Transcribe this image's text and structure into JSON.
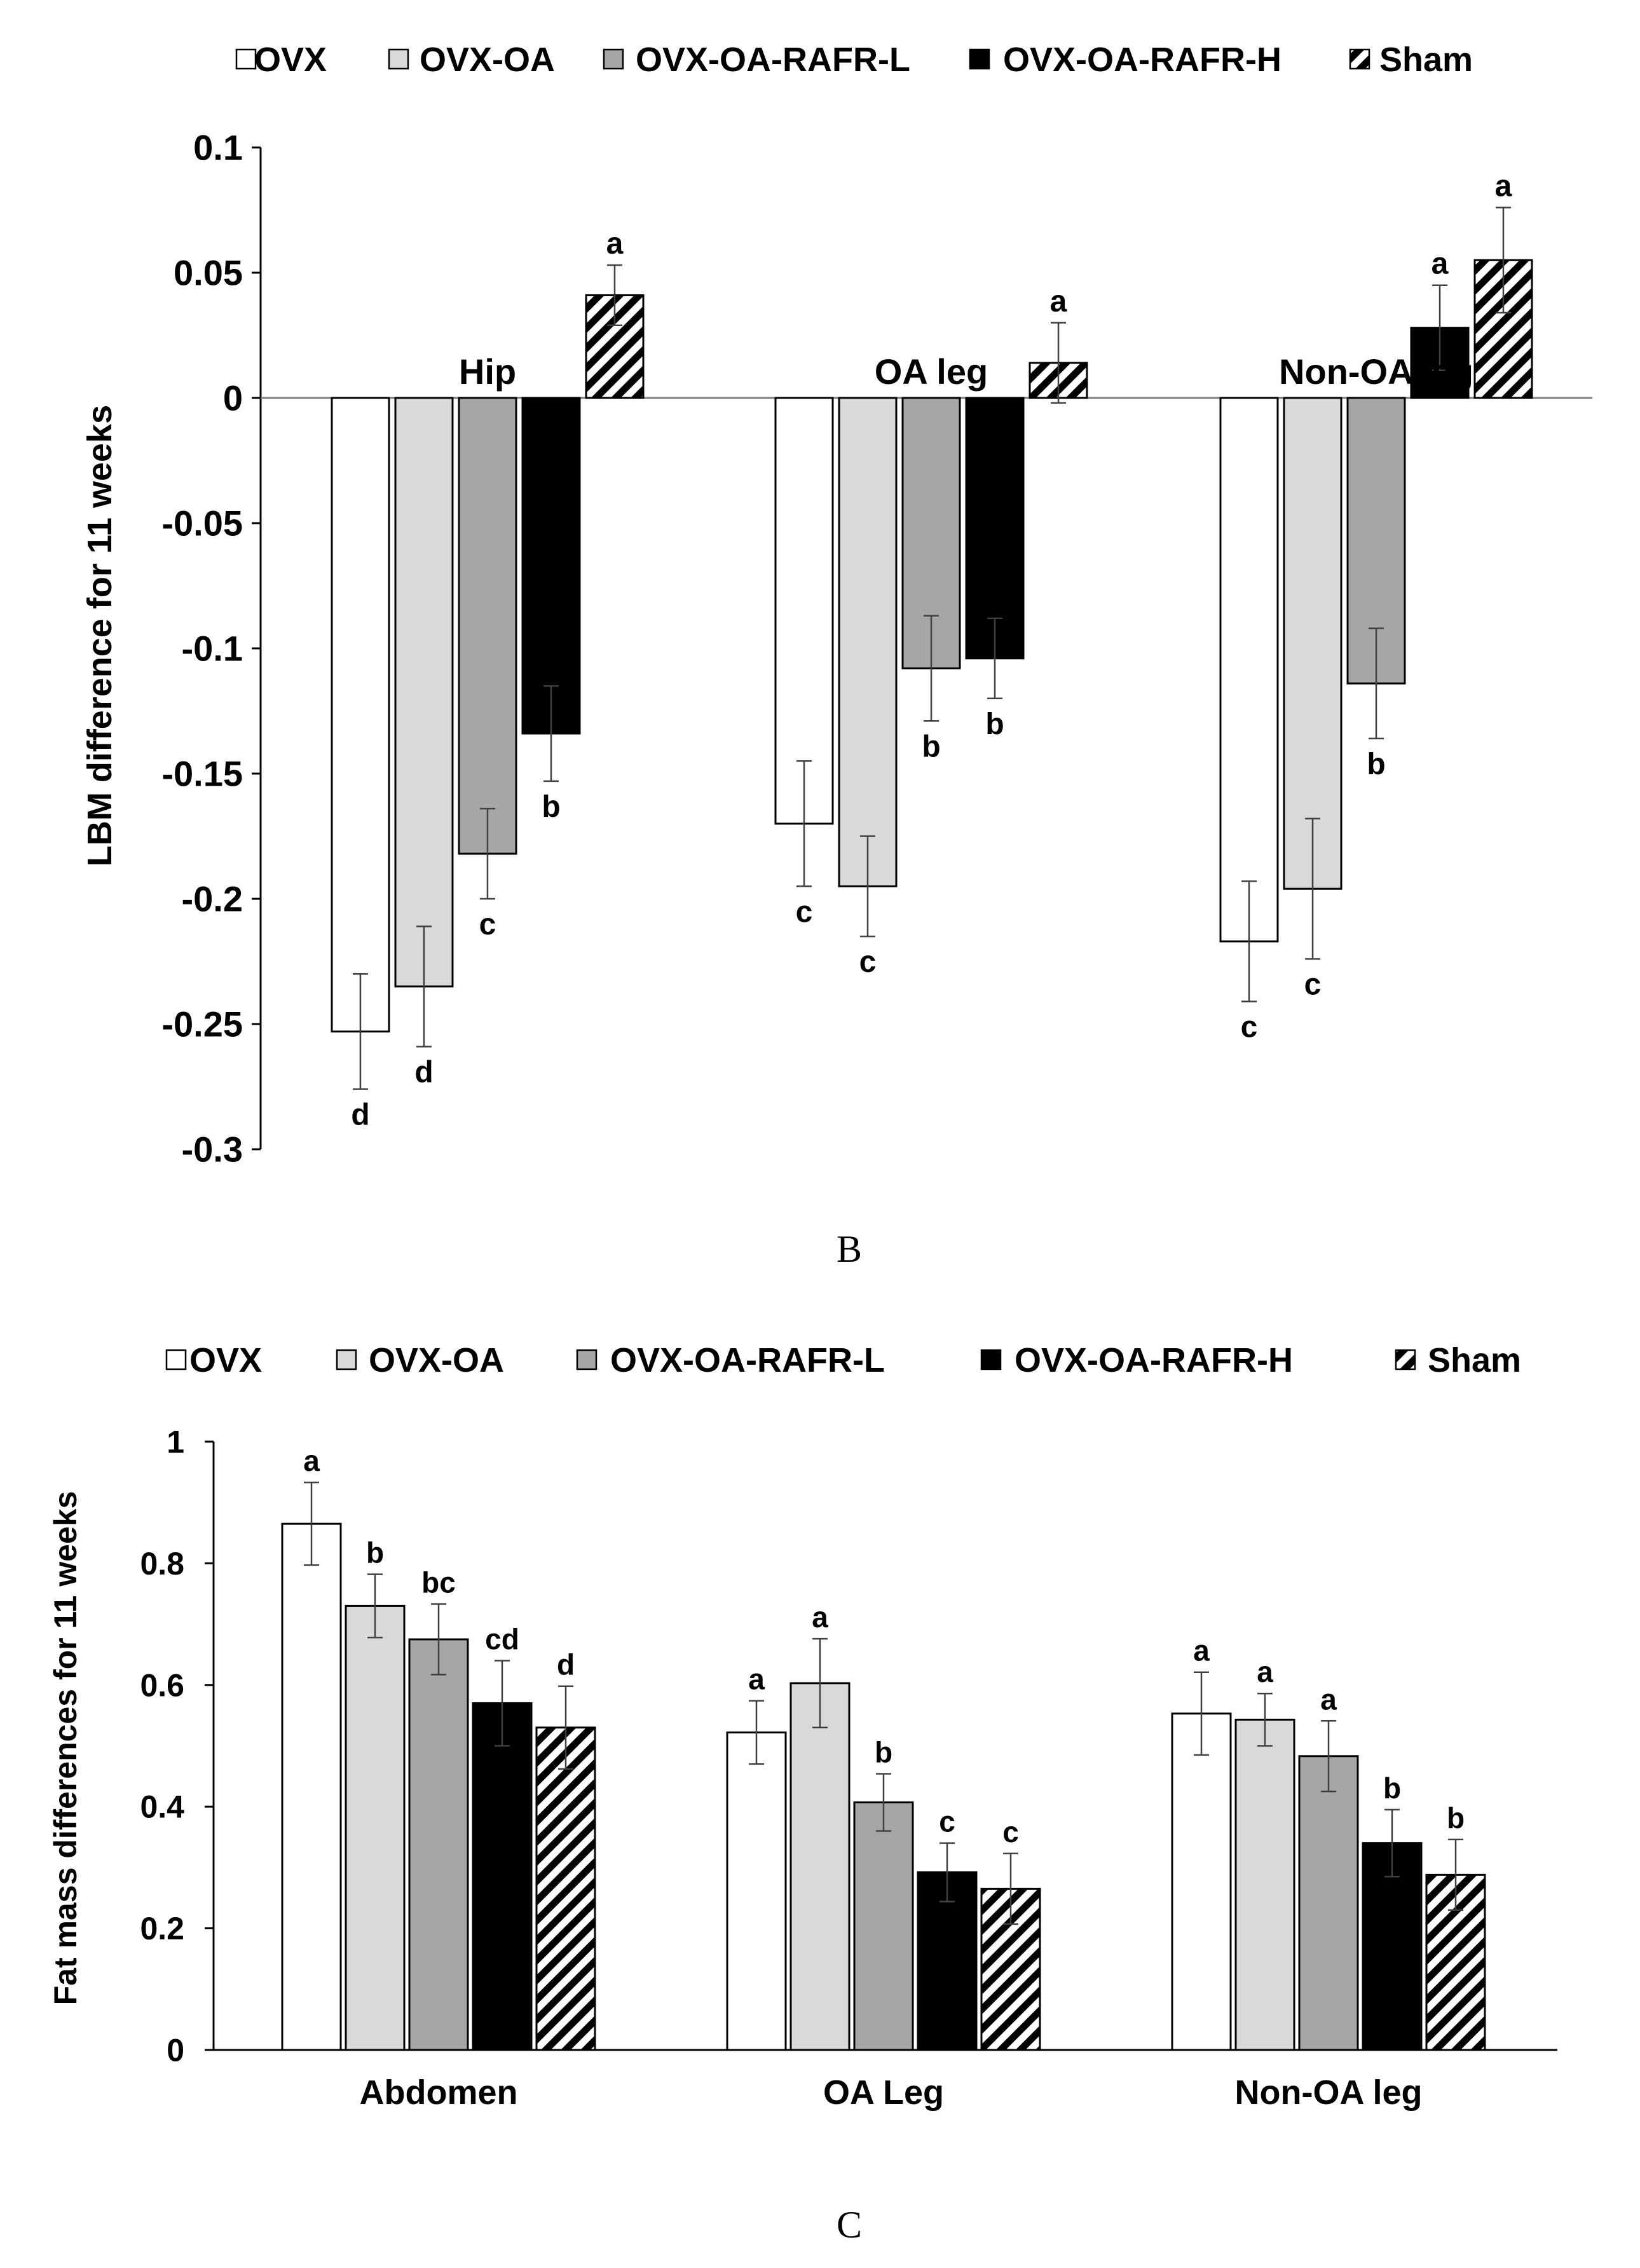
{
  "chart_data": [
    {
      "type": "bar",
      "panel_label": "B",
      "title": "",
      "xlabel": "",
      "ylabel": "LBM difference for 11 weeks",
      "ylim": [
        -0.3,
        0.1
      ],
      "yticks": [
        "0.1",
        "0.05",
        "0",
        "-0.05",
        "-0.1",
        "-0.15",
        "-0.2",
        "-0.25",
        "-0.3"
      ],
      "ytick_values": [
        0.1,
        0.05,
        0,
        -0.05,
        -0.1,
        -0.15,
        -0.2,
        -0.25,
        -0.3
      ],
      "categories": [
        "Hip",
        "OA leg",
        "Non-OA leg"
      ],
      "legend_position": "top",
      "series": [
        {
          "name": "OVX",
          "style": "white",
          "values": [
            -0.253,
            -0.17,
            -0.217
          ],
          "errors": [
            0.023,
            0.025,
            0.024
          ],
          "letters": [
            "d",
            "c",
            "c"
          ]
        },
        {
          "name": "OVX-OA",
          "style": "lightgray",
          "values": [
            -0.235,
            -0.195,
            -0.196
          ],
          "errors": [
            0.024,
            0.02,
            0.028
          ],
          "letters": [
            "d",
            "c",
            "c"
          ]
        },
        {
          "name": "OVX-OA-RAFR-L",
          "style": "gray",
          "values": [
            -0.182,
            -0.108,
            -0.114
          ],
          "errors": [
            0.018,
            0.021,
            0.022
          ],
          "letters": [
            "c",
            "b",
            "b"
          ]
        },
        {
          "name": "OVX-OA-RAFR-H",
          "style": "black",
          "values": [
            -0.134,
            -0.104,
            0.028
          ],
          "errors": [
            0.019,
            0.016,
            0.017
          ],
          "letters": [
            "b",
            "b",
            "a"
          ]
        },
        {
          "name": "Sham",
          "style": "hatch",
          "values": [
            0.041,
            0.014,
            0.055
          ],
          "errors": [
            0.012,
            0.016,
            0.021
          ],
          "letters": [
            "a",
            "a",
            "a"
          ]
        }
      ]
    },
    {
      "type": "bar",
      "panel_label": "C",
      "title": "",
      "xlabel": "",
      "ylabel": "Fat mass differences for 11 weeks",
      "ylim": [
        0,
        1
      ],
      "yticks": [
        "1",
        "0.8",
        "0.6",
        "0.4",
        "0.2",
        "0"
      ],
      "ytick_values": [
        1,
        0.8,
        0.6,
        0.4,
        0.2,
        0
      ],
      "categories": [
        "Abdomen",
        "OA Leg",
        "Non-OA leg"
      ],
      "legend_position": "top",
      "series": [
        {
          "name": "OVX",
          "style": "white",
          "values": [
            0.865,
            0.522,
            0.553
          ],
          "errors": [
            0.068,
            0.052,
            0.068
          ],
          "letters": [
            "a",
            "a",
            "a"
          ]
        },
        {
          "name": "OVX-OA",
          "style": "lightgray",
          "values": [
            0.73,
            0.603,
            0.543
          ],
          "errors": [
            0.052,
            0.073,
            0.043
          ],
          "letters": [
            "b",
            "a",
            "a"
          ]
        },
        {
          "name": "OVX-OA-RAFR-L",
          "style": "gray",
          "values": [
            0.675,
            0.407,
            0.483
          ],
          "errors": [
            0.058,
            0.047,
            0.058
          ],
          "letters": [
            "bc",
            "b",
            "a"
          ]
        },
        {
          "name": "OVX-OA-RAFR-H",
          "style": "black",
          "values": [
            0.57,
            0.292,
            0.34
          ],
          "errors": [
            0.07,
            0.048,
            0.055
          ],
          "letters": [
            "cd",
            "c",
            "b"
          ]
        },
        {
          "name": "Sham",
          "style": "hatch",
          "values": [
            0.53,
            0.265,
            0.288
          ],
          "errors": [
            0.068,
            0.058,
            0.058
          ],
          "letters": [
            "d",
            "c",
            "b"
          ]
        }
      ]
    }
  ],
  "colors": {
    "white": "#ffffff",
    "lightgray": "#d9d9d9",
    "gray": "#a6a6a6",
    "black": "#000000",
    "hatch": "#000000",
    "axis": "#000000",
    "error_bar": "#404040"
  }
}
